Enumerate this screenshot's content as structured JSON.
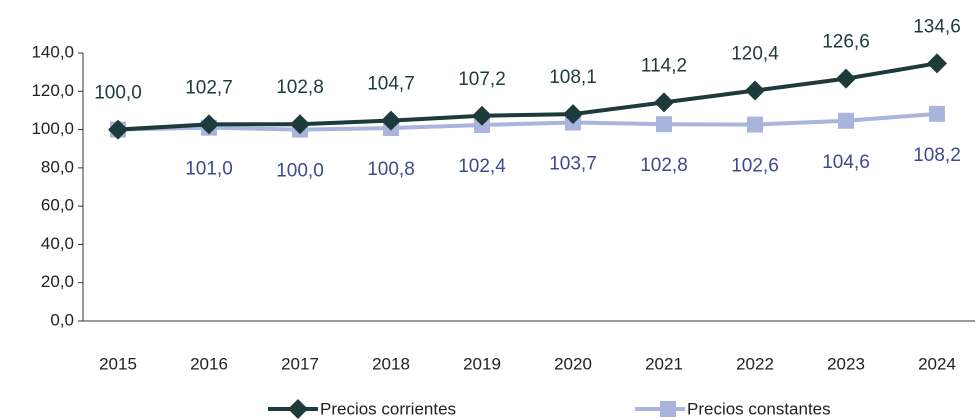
{
  "chart_data": {
    "type": "line",
    "categories": [
      "2015",
      "2016",
      "2017",
      "2018",
      "2019",
      "2020",
      "2021",
      "2022",
      "2023",
      "2024"
    ],
    "series": [
      {
        "name": "Precios corrientes",
        "color": "#1e3b3b",
        "label_color": "#1e3b3b",
        "marker": "diamond",
        "values": [
          100.0,
          102.7,
          102.8,
          104.7,
          107.2,
          108.1,
          114.2,
          120.4,
          126.6,
          134.6
        ],
        "value_labels": [
          "100,0",
          "102,7",
          "102,8",
          "104,7",
          "107,2",
          "108,1",
          "114,2",
          "120,4",
          "126,6",
          "134,6"
        ]
      },
      {
        "name": "Precios constantes",
        "color": "#a9b5dd",
        "label_color": "#3e4a8e",
        "marker": "square",
        "values": [
          100.0,
          101.0,
          100.0,
          100.8,
          102.4,
          103.7,
          102.8,
          102.6,
          104.6,
          108.2
        ],
        "value_labels": [
          null,
          "101,0",
          "100,0",
          "100,8",
          "102,4",
          "103,7",
          "102,8",
          "102,6",
          "104,6",
          "108,2"
        ]
      }
    ],
    "ylim": [
      0,
      140
    ],
    "yticks": [
      {
        "value": 0,
        "label": "0,0"
      },
      {
        "value": 20,
        "label": "20,0"
      },
      {
        "value": 40,
        "label": "40,0"
      },
      {
        "value": 60,
        "label": "60,0"
      },
      {
        "value": 80,
        "label": "80,0"
      },
      {
        "value": 100,
        "label": "100,0"
      },
      {
        "value": 120,
        "label": "120,0"
      },
      {
        "value": 140,
        "label": "140,0"
      }
    ],
    "grid": false,
    "legend": "bottom"
  }
}
